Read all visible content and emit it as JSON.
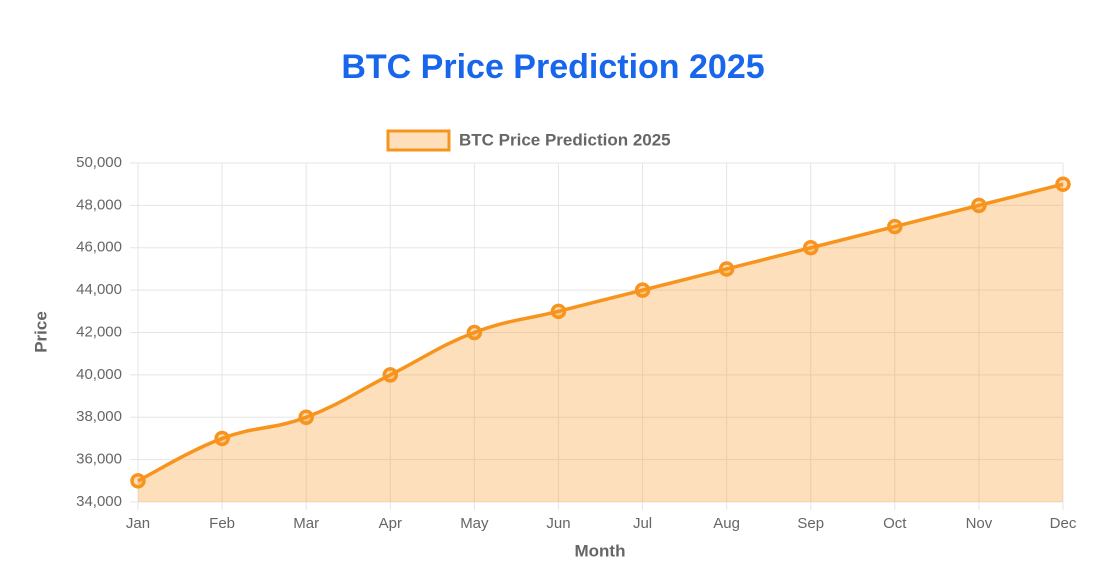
{
  "chart_data": {
    "type": "line",
    "title": "BTC Price Prediction 2025",
    "x_label": "Month",
    "y_label": "Price",
    "categories": [
      "Jan",
      "Feb",
      "Mar",
      "Apr",
      "May",
      "Jun",
      "Jul",
      "Aug",
      "Sep",
      "Oct",
      "Nov",
      "Dec"
    ],
    "series": [
      {
        "name": "BTC Price Prediction 2025",
        "color": "#f7941d",
        "fill": "rgba(247,148,29,0.3)",
        "values": [
          35000,
          37000,
          38000,
          40000,
          42000,
          43000,
          44000,
          45000,
          46000,
          47000,
          48000,
          49000
        ]
      }
    ],
    "ylim": [
      34000,
      50000
    ],
    "yticks": [
      {
        "value": 34000,
        "label": "34,000"
      },
      {
        "value": 36000,
        "label": "36,000"
      },
      {
        "value": 38000,
        "label": "38,000"
      },
      {
        "value": 40000,
        "label": "40,000"
      },
      {
        "value": 42000,
        "label": "42,000"
      },
      {
        "value": 44000,
        "label": "44,000"
      },
      {
        "value": 46000,
        "label": "46,000"
      },
      {
        "value": 48000,
        "label": "48,000"
      },
      {
        "value": 50000,
        "label": "50,000"
      }
    ],
    "grid": true,
    "legend": "top"
  }
}
